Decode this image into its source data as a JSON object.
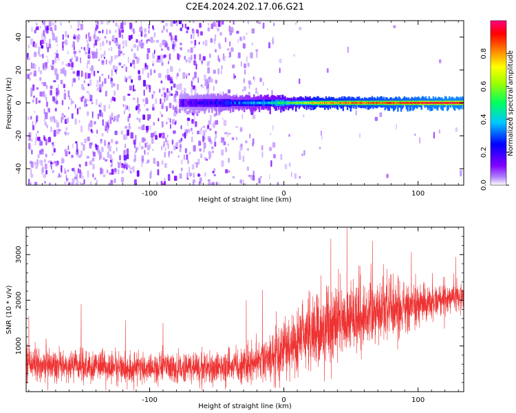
{
  "figure": {
    "title": "C2E4.2024.202.17.06.G21"
  },
  "chart_data": [
    {
      "type": "heatmap",
      "xlabel": "Height of straight line (km)",
      "ylabel": "Frequency (Hz)",
      "xlim": [
        -192,
        134
      ],
      "ylim": [
        -50,
        50
      ],
      "xticks": [
        -100,
        0,
        100
      ],
      "yticks": [
        -40,
        -20,
        0,
        20,
        40
      ],
      "colorbar": {
        "label": "Normalized spectral amplitude",
        "range": [
          0,
          1
        ],
        "ticks": [
          0.0,
          0.2,
          0.4,
          0.6,
          0.8
        ],
        "colormap": [
          "#ffffff",
          "#8000ff",
          "#0000ff",
          "#00c0ff",
          "#00ff00",
          "#ffff00",
          "#ff8000",
          "#ff0000",
          "#ff0080"
        ]
      },
      "description_points": [
        {
          "x": -150,
          "note_amp": 0.1
        },
        {
          "x": -75,
          "note_amp": 0.18
        },
        {
          "x": -40,
          "note_amp": 0.3
        },
        {
          "x": 0,
          "note_amp": 0.55
        },
        {
          "x": 50,
          "note_amp": 0.85
        },
        {
          "x": 120,
          "note_amp": 0.95
        }
      ],
      "grid": false
    },
    {
      "type": "line",
      "xlabel": "Height of straight line (km)",
      "ylabel": "SNR (10 * v/v)",
      "xlim": [
        -192,
        134
      ],
      "ylim": [
        0,
        3600
      ],
      "xticks": [
        -100,
        0,
        100
      ],
      "yticks": [
        1000,
        2000,
        3000
      ],
      "color": "#ee3333",
      "trend": {
        "x": [
          -192,
          -150,
          -100,
          -50,
          -20,
          0,
          20,
          40,
          60,
          80,
          100,
          120,
          134
        ],
        "mean": [
          600,
          560,
          520,
          520,
          620,
          950,
          1250,
          1550,
          1650,
          1750,
          1900,
          2050,
          2100
        ],
        "spread": [
          330,
          320,
          300,
          320,
          420,
          600,
          700,
          750,
          700,
          600,
          420,
          330,
          300
        ]
      },
      "peaks": [
        {
          "x": -190,
          "y": 1650
        },
        {
          "x": -151,
          "y": 1920
        },
        {
          "x": -118,
          "y": 1560
        },
        {
          "x": -90,
          "y": 1500
        },
        {
          "x": -28,
          "y": 2000
        },
        {
          "x": -16,
          "y": 2230
        },
        {
          "x": 35,
          "y": 3350
        },
        {
          "x": 47,
          "y": 3600
        },
        {
          "x": 66,
          "y": 3300
        },
        {
          "x": 95,
          "y": 3050
        },
        {
          "x": 128,
          "y": 2950
        }
      ],
      "grid": false
    }
  ]
}
